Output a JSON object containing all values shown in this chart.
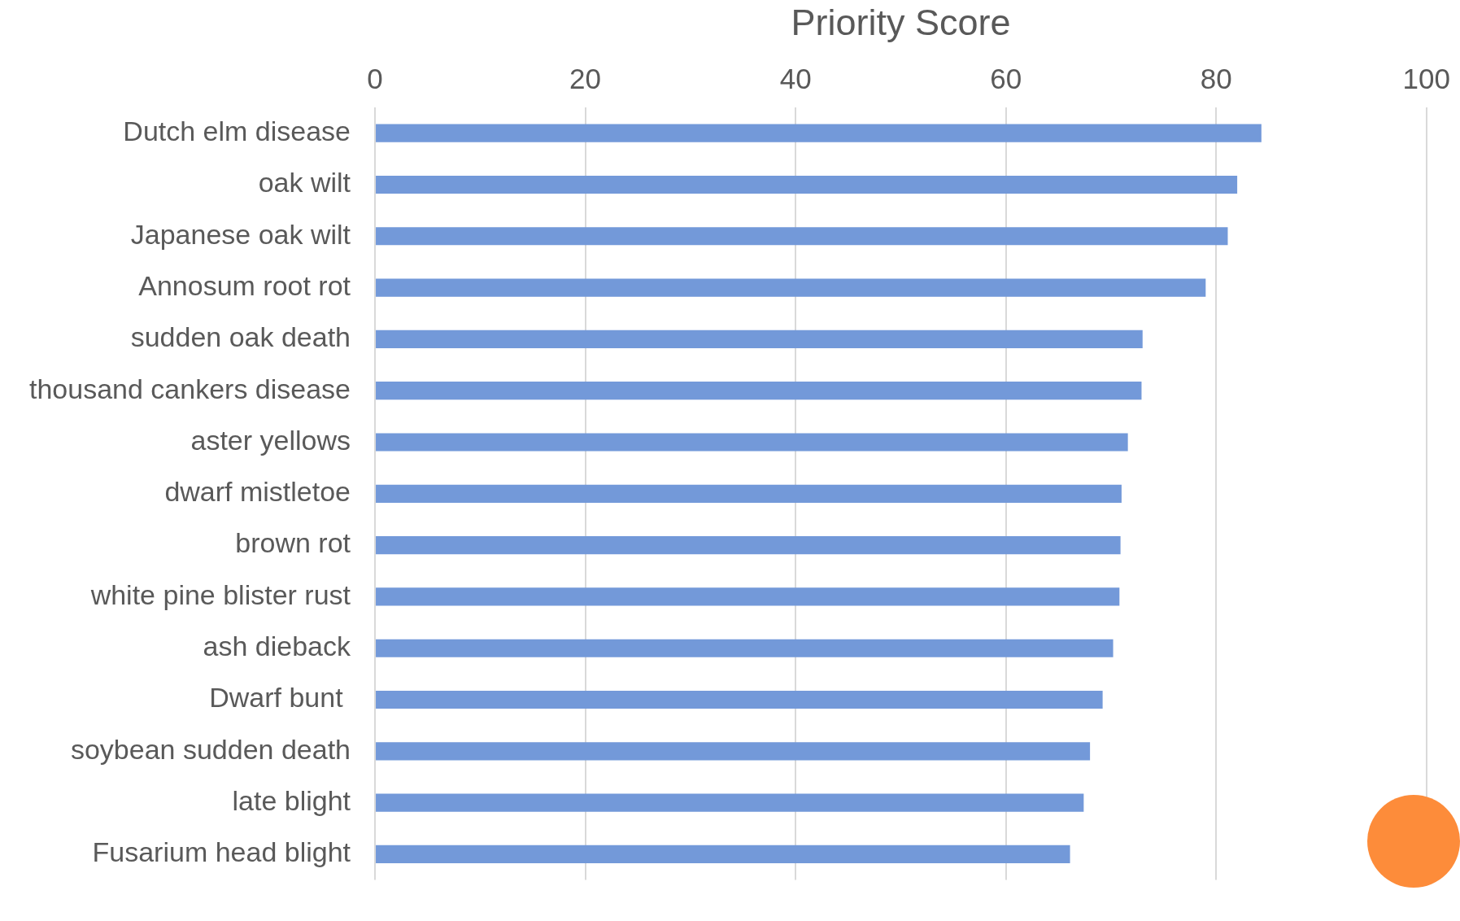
{
  "chart_data": {
    "type": "bar",
    "orientation": "horizontal",
    "xlabel": "Priority Score",
    "categories": [
      "Dutch elm disease",
      "oak wilt",
      "Japanese oak wilt",
      "Annosum root rot",
      "sudden oak death",
      "thousand cankers disease",
      "aster yellows",
      "dwarf mistletoe",
      "brown rot",
      "white pine blister rust",
      "ash dieback",
      "Dwarf bunt ",
      "soybean sudden death",
      "late blight",
      "Fusarium head blight"
    ],
    "values": [
      84.3,
      82.0,
      81.1,
      79.0,
      73.0,
      72.9,
      71.6,
      71.0,
      70.9,
      70.8,
      70.2,
      69.2,
      68.0,
      67.4,
      66.1
    ],
    "color": "#7399d9",
    "xlim": [
      0,
      100
    ],
    "xticks": [
      0,
      20,
      40,
      60,
      80,
      100
    ],
    "grid": "x",
    "legend": false
  }
}
